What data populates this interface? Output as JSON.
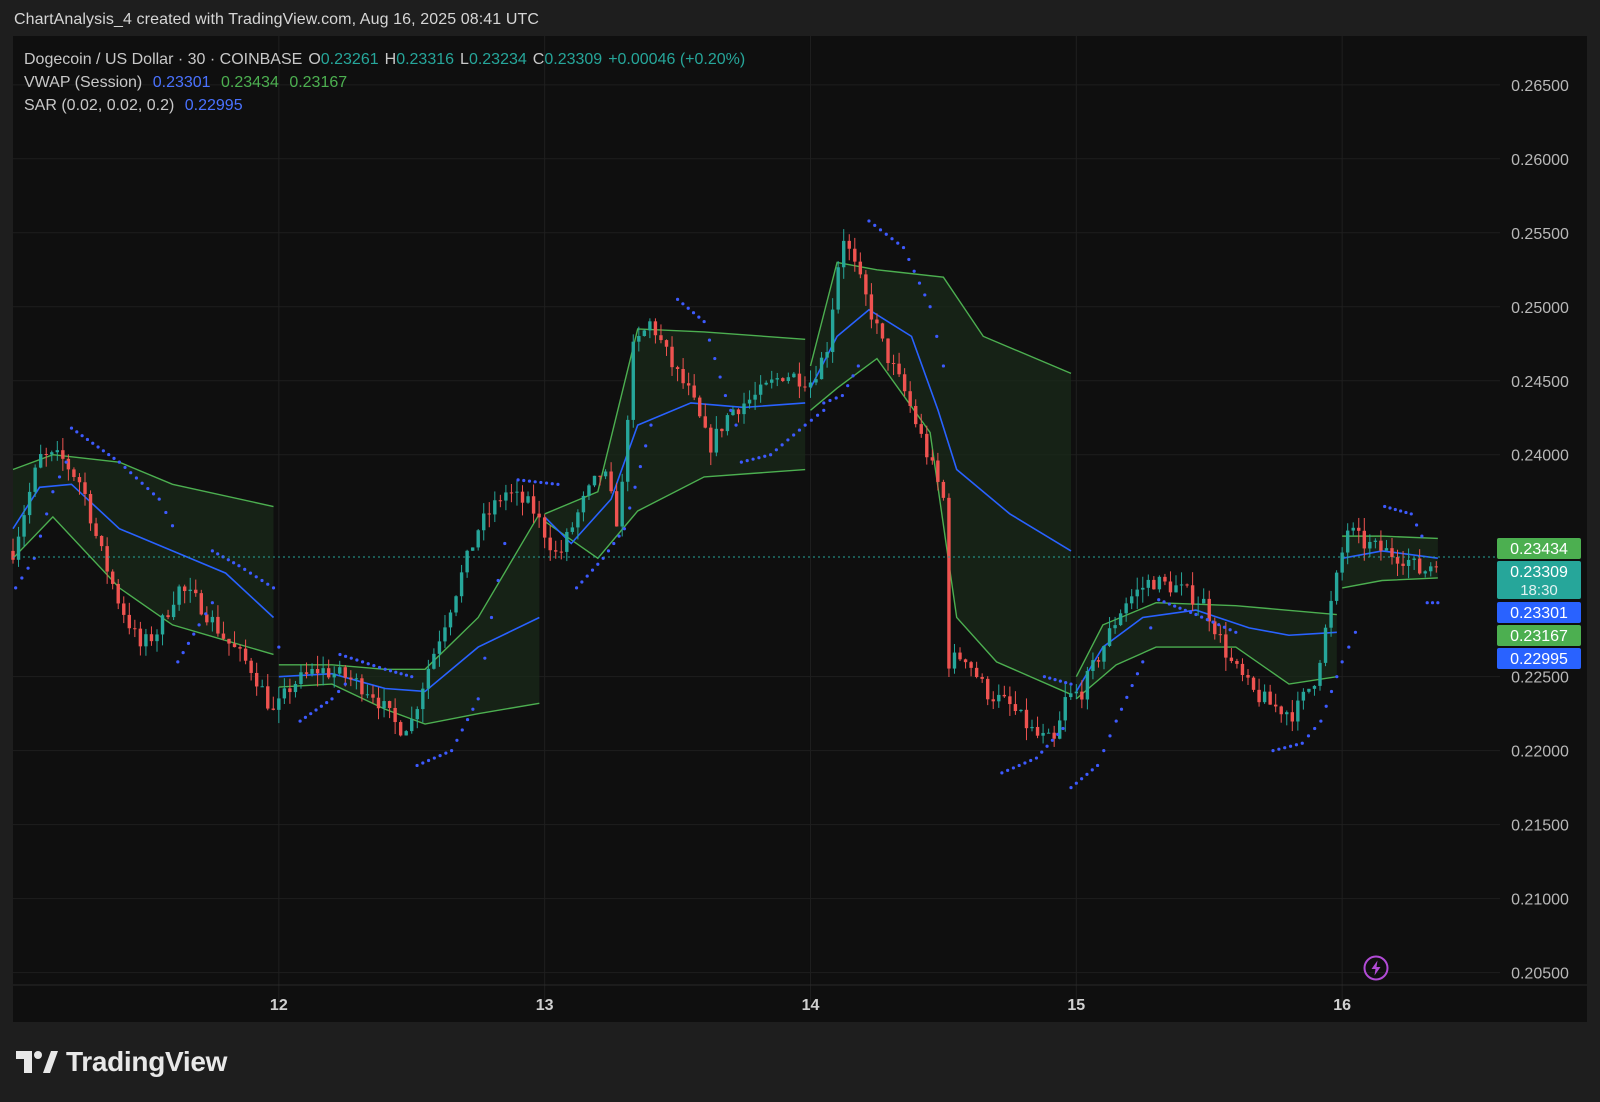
{
  "header": {
    "caption": "ChartAnalysis_4 created with TradingView.com, Aug 16, 2025 08:41 UTC"
  },
  "legend": {
    "symbol": "Dogecoin / US Dollar · 30 · COINBASE",
    "ohlc": {
      "o_label": "O",
      "o": "0.23261",
      "h_label": "H",
      "h": "0.23316",
      "l_label": "L",
      "l": "0.23234",
      "c_label": "C",
      "c": "0.23309",
      "change": "+0.00046 (+0.20%)"
    },
    "vwap": {
      "label": "VWAP (Session)",
      "vwap": "0.23301",
      "upper": "0.23434",
      "lower": "0.23167"
    },
    "sar": {
      "label": "SAR (0.02, 0.02, 0.2)",
      "value": "0.22995"
    }
  },
  "price_tags": [
    {
      "value": "0.23434",
      "color": "#4caf50"
    },
    {
      "value": "0.23309",
      "sub": "18:30",
      "color": "#26a69a"
    },
    {
      "value": "0.23301",
      "color": "#2962ff"
    },
    {
      "value": "0.23167",
      "color": "#4caf50"
    },
    {
      "value": "0.22995",
      "color": "#2962ff"
    }
  ],
  "branding": {
    "logo_text": "TradingView"
  },
  "colors": {
    "background": "#0f0f0f",
    "grid": "#1f1f1f",
    "up": "#26a69a",
    "down": "#ef5350",
    "vwap": "#2962ff",
    "band": "#4caf50",
    "band_fill": "#1a2a1a",
    "sar": "#3d5afe"
  },
  "chart_data": {
    "type": "candlestick",
    "y_ticks": [
      "0.26500",
      "0.26000",
      "0.25500",
      "0.25000",
      "0.24500",
      "0.24000",
      "0.22500",
      "0.22000",
      "0.21500",
      "0.21000",
      "0.20500"
    ],
    "x_ticks": [
      "12",
      "13",
      "14",
      "15",
      "16"
    ],
    "ylim": [
      0.2045,
      0.2683
    ],
    "xlim_days": [
      11.0,
      16.97
    ],
    "last_price": 0.23309,
    "grid": true,
    "keypoints": [
      [
        11.0,
        0.2335
      ],
      [
        11.1,
        0.2398
      ],
      [
        11.18,
        0.2398
      ],
      [
        11.26,
        0.238
      ],
      [
        11.32,
        0.234
      ],
      [
        11.4,
        0.23
      ],
      [
        11.48,
        0.227
      ],
      [
        11.55,
        0.2282
      ],
      [
        11.62,
        0.231
      ],
      [
        11.7,
        0.23
      ],
      [
        11.8,
        0.2275
      ],
      [
        11.9,
        0.2255
      ],
      [
        11.98,
        0.2225
      ],
      [
        12.05,
        0.2245
      ],
      [
        12.15,
        0.2255
      ],
      [
        12.25,
        0.225
      ],
      [
        12.35,
        0.224
      ],
      [
        12.45,
        0.2215
      ],
      [
        12.5,
        0.222
      ],
      [
        12.55,
        0.225
      ],
      [
        12.65,
        0.23
      ],
      [
        12.75,
        0.235
      ],
      [
        12.85,
        0.2375
      ],
      [
        12.95,
        0.2365
      ],
      [
        13.05,
        0.233
      ],
      [
        13.15,
        0.237
      ],
      [
        13.22,
        0.239
      ],
      [
        13.28,
        0.235
      ],
      [
        13.33,
        0.247
      ],
      [
        13.4,
        0.249
      ],
      [
        13.48,
        0.246
      ],
      [
        13.55,
        0.244
      ],
      [
        13.62,
        0.2405
      ],
      [
        13.7,
        0.243
      ],
      [
        13.8,
        0.244
      ],
      [
        13.9,
        0.2455
      ],
      [
        14.0,
        0.245
      ],
      [
        14.06,
        0.247
      ],
      [
        14.12,
        0.255
      ],
      [
        14.2,
        0.251
      ],
      [
        14.28,
        0.247
      ],
      [
        14.36,
        0.244
      ],
      [
        14.44,
        0.24
      ],
      [
        14.5,
        0.237
      ],
      [
        14.52,
        0.226
      ],
      [
        14.58,
        0.2265
      ],
      [
        14.66,
        0.224
      ],
      [
        14.75,
        0.223
      ],
      [
        14.85,
        0.221
      ],
      [
        14.92,
        0.2205
      ],
      [
        14.96,
        0.2235
      ],
      [
        15.02,
        0.224
      ],
      [
        15.1,
        0.227
      ],
      [
        15.18,
        0.23
      ],
      [
        15.28,
        0.2315
      ],
      [
        15.38,
        0.231
      ],
      [
        15.48,
        0.23
      ],
      [
        15.58,
        0.226
      ],
      [
        15.66,
        0.224
      ],
      [
        15.74,
        0.223
      ],
      [
        15.82,
        0.2225
      ],
      [
        15.9,
        0.225
      ],
      [
        15.96,
        0.23
      ],
      [
        16.02,
        0.235
      ],
      [
        16.08,
        0.234
      ],
      [
        16.16,
        0.2335
      ],
      [
        16.24,
        0.233
      ],
      [
        16.3,
        0.232
      ],
      [
        16.36,
        0.2331
      ]
    ],
    "vwap_segments": [
      [
        [
          11.0,
          0.235
        ],
        [
          11.1,
          0.2378
        ],
        [
          11.22,
          0.238
        ],
        [
          11.4,
          0.235
        ],
        [
          11.6,
          0.2335
        ],
        [
          11.8,
          0.232
        ],
        [
          11.98,
          0.229
        ]
      ],
      [
        [
          12.0,
          0.225
        ],
        [
          12.2,
          0.2252
        ],
        [
          12.4,
          0.2242
        ],
        [
          12.55,
          0.224
        ],
        [
          12.75,
          0.227
        ],
        [
          12.98,
          0.229
        ]
      ],
      [
        [
          13.0,
          0.2358
        ],
        [
          13.1,
          0.234
        ],
        [
          13.25,
          0.237
        ],
        [
          13.35,
          0.242
        ],
        [
          13.55,
          0.2435
        ],
        [
          13.75,
          0.2432
        ],
        [
          13.98,
          0.2435
        ]
      ],
      [
        [
          14.0,
          0.2445
        ],
        [
          14.1,
          0.248
        ],
        [
          14.22,
          0.2498
        ],
        [
          14.38,
          0.248
        ],
        [
          14.48,
          0.243
        ],
        [
          14.55,
          0.239
        ],
        [
          14.75,
          0.236
        ],
        [
          14.98,
          0.2335
        ]
      ],
      [
        [
          15.0,
          0.224
        ],
        [
          15.1,
          0.227
        ],
        [
          15.25,
          0.229
        ],
        [
          15.45,
          0.2295
        ],
        [
          15.65,
          0.2283
        ],
        [
          15.8,
          0.2278
        ],
        [
          15.98,
          0.228
        ]
      ],
      [
        [
          16.0,
          0.233
        ],
        [
          16.15,
          0.2335
        ],
        [
          16.36,
          0.23301
        ]
      ]
    ],
    "band_segments": [
      {
        "upper": [
          [
            11.0,
            0.239
          ],
          [
            11.15,
            0.24
          ],
          [
            11.4,
            0.2395
          ],
          [
            11.6,
            0.238
          ],
          [
            11.98,
            0.2365
          ]
        ],
        "lower": [
          [
            11.0,
            0.233
          ],
          [
            11.15,
            0.2358
          ],
          [
            11.4,
            0.231
          ],
          [
            11.6,
            0.2285
          ],
          [
            11.98,
            0.2265
          ]
        ]
      },
      {
        "upper": [
          [
            12.0,
            0.2258
          ],
          [
            12.2,
            0.2258
          ],
          [
            12.4,
            0.2255
          ],
          [
            12.55,
            0.2255
          ],
          [
            12.75,
            0.229
          ],
          [
            12.98,
            0.236
          ]
        ],
        "lower": [
          [
            12.0,
            0.2243
          ],
          [
            12.2,
            0.2245
          ],
          [
            12.4,
            0.2228
          ],
          [
            12.55,
            0.2218
          ],
          [
            12.75,
            0.2225
          ],
          [
            12.98,
            0.2232
          ]
        ]
      },
      {
        "upper": [
          [
            13.0,
            0.236
          ],
          [
            13.2,
            0.2375
          ],
          [
            13.35,
            0.2485
          ],
          [
            13.6,
            0.2483
          ],
          [
            13.98,
            0.2478
          ]
        ],
        "lower": [
          [
            13.0,
            0.2355
          ],
          [
            13.2,
            0.233
          ],
          [
            13.35,
            0.2362
          ],
          [
            13.6,
            0.2385
          ],
          [
            13.98,
            0.239
          ]
        ]
      },
      {
        "upper": [
          [
            14.0,
            0.246
          ],
          [
            14.1,
            0.253
          ],
          [
            14.25,
            0.2525
          ],
          [
            14.5,
            0.252
          ],
          [
            14.65,
            0.248
          ],
          [
            14.98,
            0.2455
          ]
        ],
        "lower": [
          [
            14.0,
            0.243
          ],
          [
            14.1,
            0.2445
          ],
          [
            14.25,
            0.2465
          ],
          [
            14.45,
            0.2415
          ],
          [
            14.55,
            0.229
          ],
          [
            14.7,
            0.226
          ],
          [
            14.98,
            0.2238
          ]
        ]
      },
      {
        "upper": [
          [
            15.0,
            0.225
          ],
          [
            15.1,
            0.2285
          ],
          [
            15.3,
            0.23
          ],
          [
            15.6,
            0.2298
          ],
          [
            15.98,
            0.2292
          ]
        ],
        "lower": [
          [
            15.0,
            0.2235
          ],
          [
            15.15,
            0.2258
          ],
          [
            15.3,
            0.227
          ],
          [
            15.6,
            0.227
          ],
          [
            15.8,
            0.2245
          ],
          [
            15.98,
            0.225
          ]
        ]
      },
      {
        "upper": [
          [
            16.0,
            0.2345
          ],
          [
            16.15,
            0.2345
          ],
          [
            16.36,
            0.23434
          ]
        ],
        "lower": [
          [
            16.0,
            0.231
          ],
          [
            16.15,
            0.2315
          ],
          [
            16.36,
            0.23167
          ]
        ]
      }
    ],
    "sar_segments": [
      [
        [
          11.01,
          0.231
        ],
        [
          11.08,
          0.233
        ],
        [
          11.15,
          0.2375
        ],
        [
          11.2,
          0.2395
        ]
      ],
      [
        [
          11.22,
          0.2418
        ],
        [
          11.4,
          0.2395
        ],
        [
          11.55,
          0.237
        ],
        [
          11.6,
          0.2352
        ]
      ],
      [
        [
          11.62,
          0.226
        ],
        [
          11.7,
          0.2285
        ],
        [
          11.75,
          0.23
        ]
      ],
      [
        [
          11.75,
          0.2335
        ],
        [
          11.85,
          0.2325
        ],
        [
          11.98,
          0.231
        ],
        [
          12.0,
          0.227
        ]
      ],
      [
        [
          12.08,
          0.222
        ],
        [
          12.2,
          0.2235
        ],
        [
          12.25,
          0.2245
        ]
      ],
      [
        [
          12.23,
          0.2265
        ],
        [
          12.4,
          0.2255
        ],
        [
          12.5,
          0.225
        ]
      ],
      [
        [
          12.52,
          0.219
        ],
        [
          12.65,
          0.22
        ],
        [
          12.75,
          0.2235
        ],
        [
          12.8,
          0.229
        ],
        [
          12.85,
          0.234
        ]
      ],
      [
        [
          12.9,
          0.2383
        ],
        [
          13.05,
          0.238
        ]
      ],
      [
        [
          13.12,
          0.231
        ],
        [
          13.22,
          0.233
        ],
        [
          13.3,
          0.235
        ],
        [
          13.4,
          0.242
        ]
      ],
      [
        [
          13.5,
          0.2505
        ],
        [
          13.6,
          0.249
        ],
        [
          13.68,
          0.244
        ],
        [
          13.72,
          0.242
        ]
      ],
      [
        [
          13.74,
          0.2395
        ],
        [
          13.85,
          0.24
        ],
        [
          13.98,
          0.242
        ],
        [
          14.05,
          0.243
        ]
      ],
      [
        [
          14.05,
          0.2435
        ],
        [
          14.12,
          0.244
        ],
        [
          14.18,
          0.246
        ]
      ],
      [
        [
          14.22,
          0.2558
        ],
        [
          14.35,
          0.254
        ],
        [
          14.45,
          0.25
        ],
        [
          14.5,
          0.246
        ]
      ],
      [
        [
          14.72,
          0.2185
        ],
        [
          14.85,
          0.2195
        ],
        [
          14.95,
          0.2215
        ]
      ],
      [
        [
          14.88,
          0.225
        ],
        [
          14.98,
          0.2245
        ]
      ],
      [
        [
          14.98,
          0.2175
        ],
        [
          15.08,
          0.219
        ],
        [
          15.15,
          0.222
        ],
        [
          15.25,
          0.226
        ],
        [
          15.28,
          0.2283
        ]
      ],
      [
        [
          15.31,
          0.2302
        ],
        [
          15.45,
          0.2292
        ],
        [
          15.6,
          0.228
        ]
      ],
      [
        [
          15.74,
          0.22
        ],
        [
          15.85,
          0.2205
        ],
        [
          15.92,
          0.222
        ],
        [
          16.0,
          0.226
        ],
        [
          16.05,
          0.228
        ]
      ],
      [
        [
          16.16,
          0.2365
        ],
        [
          16.26,
          0.236
        ],
        [
          16.3,
          0.2345
        ]
      ],
      [
        [
          16.32,
          0.23
        ],
        [
          16.36,
          0.23
        ]
      ]
    ]
  }
}
